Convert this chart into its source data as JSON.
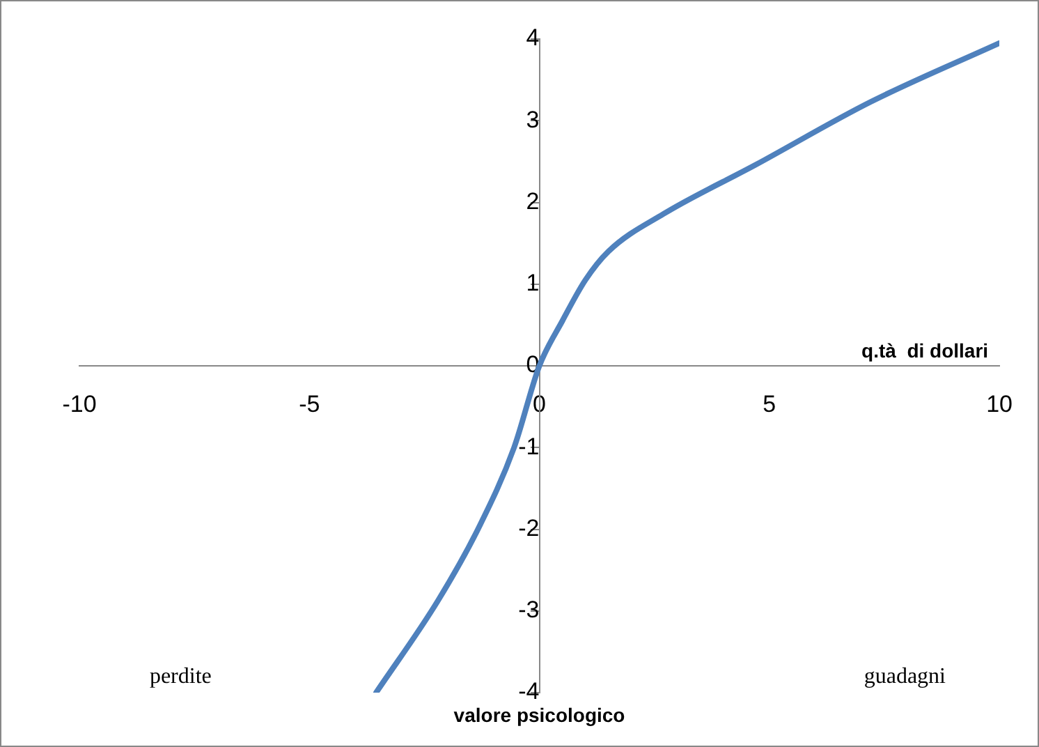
{
  "chart_data": {
    "type": "line",
    "xlabel": "q.tà  di dollari",
    "x": [
      -3.55,
      -2.2,
      -1.3,
      -0.55,
      0,
      0.5,
      1,
      1.5,
      2.7,
      4.7,
      7.2,
      10
    ],
    "series": [
      {
        "color": "#4f81bd",
        "values": [
          -4,
          -2.87,
          -1.96,
          -1.0,
          0,
          0.55,
          1.05,
          1.4,
          1.86,
          2.46,
          3.23,
          3.95
        ]
      }
    ],
    "xlim": [
      -10,
      10
    ],
    "xticks": [
      -10,
      -5,
      0,
      5,
      10
    ],
    "ylim": [
      -4,
      4
    ],
    "yticks": [
      -4,
      -3,
      -2,
      -1,
      0,
      1,
      2,
      3,
      4
    ],
    "annotations": [
      "perdite",
      "guadagni",
      "valore psicologico"
    ],
    "grid": false,
    "legend": false,
    "marker": "none",
    "line_style": "solid"
  }
}
